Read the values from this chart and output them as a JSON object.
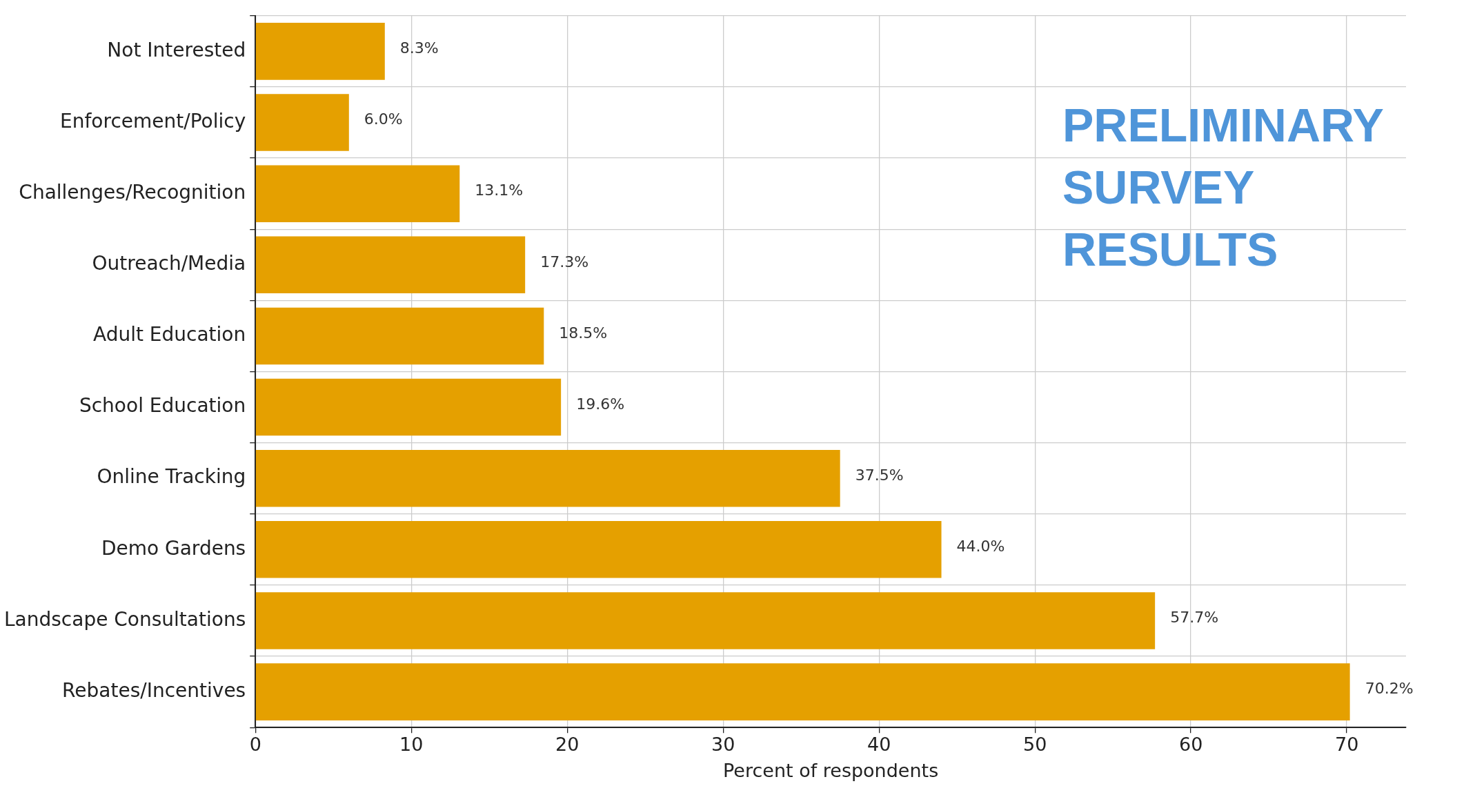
{
  "chart_data": {
    "type": "bar",
    "orientation": "horizontal",
    "xlabel": "Percent of respondents",
    "categories": [
      "Not Interested",
      "Enforcement/Policy",
      "Challenges/Recognition",
      "Outreach/Media",
      "Adult Education",
      "School Education",
      "Online Tracking",
      "Demo Gardens",
      "Landscape Consultations",
      "Rebates/Incentives"
    ],
    "values": [
      8.3,
      6.0,
      13.1,
      17.3,
      18.5,
      19.6,
      37.5,
      44.0,
      57.7,
      70.2
    ],
    "value_labels": [
      "8.3%",
      "6.0%",
      "13.1%",
      "17.3%",
      "18.5%",
      "19.6%",
      "37.5%",
      "44.0%",
      "57.7%",
      "70.2%"
    ],
    "color": "#e5a000",
    "xlim": [
      0,
      73.8
    ],
    "xticks": [
      0,
      10,
      20,
      30,
      40,
      50,
      60,
      70
    ],
    "grid": true,
    "legend": false,
    "annotations": [
      "PRELIMINARY SURVEY RESULTS"
    ]
  }
}
